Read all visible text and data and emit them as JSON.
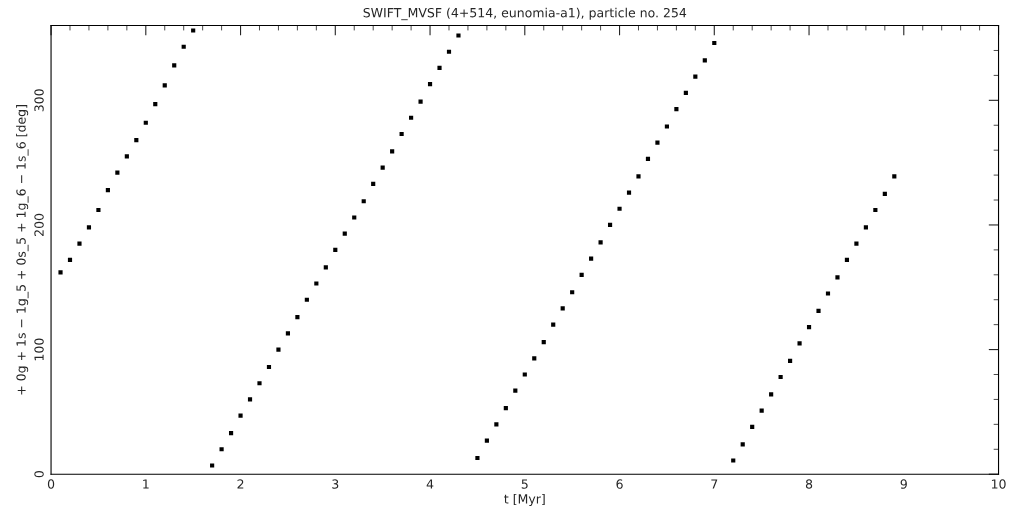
{
  "chart_data": {
    "type": "scatter",
    "title": "SWIFT_MVSF (4+514, eunomia-a1), particle no. 254",
    "xlabel": "t [Myr]",
    "ylabel": "+ 0g + 1s − 1g_5 + 0s_5 + 1g_6 − 1s_6 [deg]",
    "series": [
      {
        "color": "#000000",
        "x": [
          0.1,
          0.2,
          0.3,
          0.4,
          0.5,
          0.6,
          0.7,
          0.8,
          0.9,
          1.0,
          1.1,
          1.2,
          1.3,
          1.4,
          1.5,
          1.7,
          1.8,
          1.9,
          2.0,
          2.1,
          2.2,
          2.3,
          2.4,
          2.5,
          2.6,
          2.7,
          2.8,
          2.9,
          3.0,
          3.1,
          3.2,
          3.3,
          3.4,
          3.5,
          3.6,
          3.7,
          3.8,
          3.9,
          4.0,
          4.1,
          4.2,
          4.3,
          4.5,
          4.6,
          4.7,
          4.8,
          4.9,
          5.0,
          5.1,
          5.2,
          5.3,
          5.4,
          5.5,
          5.6,
          5.7,
          5.8,
          5.9,
          6.0,
          6.1,
          6.2,
          6.3,
          6.4,
          6.5,
          6.6,
          6.7,
          6.8,
          6.9,
          7.0,
          7.2,
          7.3,
          7.4,
          7.5,
          7.6,
          7.7,
          7.8,
          7.9,
          8.0,
          8.1,
          8.2,
          8.3,
          8.4,
          8.5,
          8.6,
          8.7,
          8.8,
          8.9
        ],
        "values": [
          162,
          172,
          185,
          198,
          212,
          228,
          242,
          255,
          268,
          282,
          297,
          312,
          328,
          343,
          356,
          7,
          20,
          33,
          47,
          60,
          73,
          86,
          100,
          113,
          126,
          140,
          153,
          166,
          180,
          193,
          206,
          219,
          233,
          246,
          259,
          273,
          286,
          299,
          313,
          326,
          339,
          352,
          13,
          27,
          40,
          53,
          67,
          80,
          93,
          106,
          120,
          133,
          146,
          160,
          173,
          186,
          200,
          213,
          226,
          239,
          253,
          266,
          279,
          293,
          306,
          319,
          332,
          346,
          11,
          24,
          38,
          51,
          64,
          78,
          91,
          105,
          118,
          131,
          145,
          158,
          172,
          185,
          198,
          212,
          225,
          239
        ]
      }
    ],
    "marker": "square",
    "xlim": [
      0,
      10
    ],
    "xticks": [
      0,
      1,
      2,
      3,
      4,
      5,
      6,
      7,
      8,
      9,
      10
    ],
    "ylim": [
      0,
      360
    ],
    "yticks": [
      0,
      100,
      200,
      300
    ],
    "grid": false,
    "legend": false
  }
}
